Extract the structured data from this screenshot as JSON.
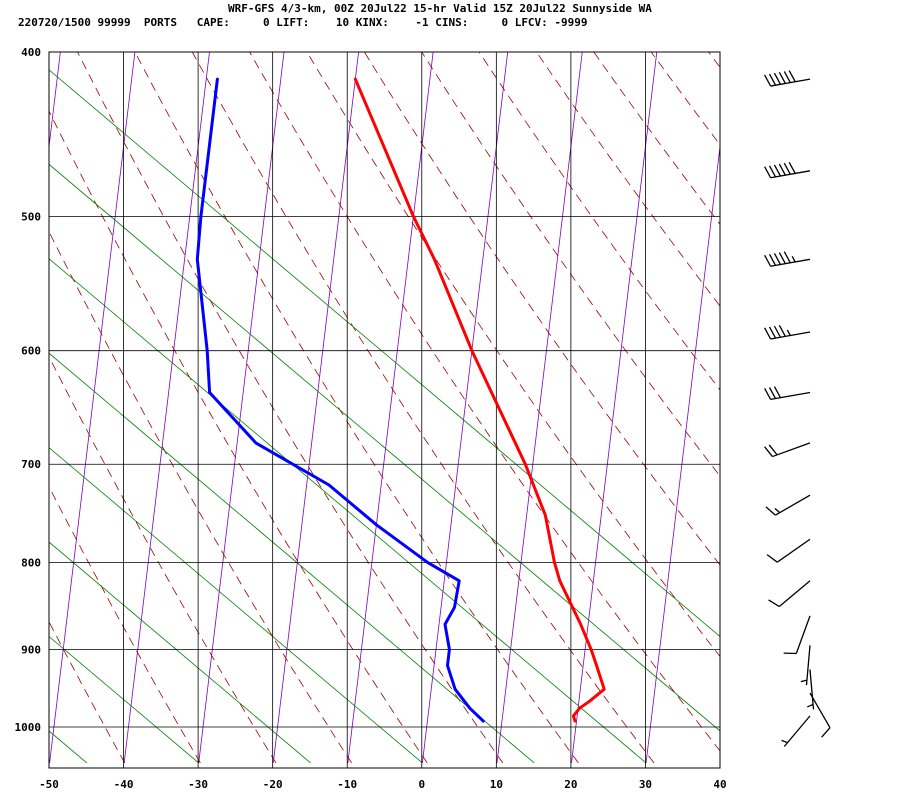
{
  "header": {
    "title": "WRF-GFS 4/3-km, 00Z 20Jul22 15-hr Valid 15Z 20Jul22 Sunnyside WA",
    "stats": "220720/1500 99999  PORTS   CAPE:     0 LIFT:    10 KINX:    -1 CINS:     0 LFCV: -9999"
  },
  "colors": {
    "temperature": "#ff0000",
    "dewpoint": "#0000ff",
    "isotherm_skew": "#8000c0",
    "dry_adiabat": "#a00000",
    "mixing_ratio": "#008000",
    "grid": "#000000"
  },
  "chart_data": {
    "type": "line",
    "title": "",
    "xlabel": "",
    "ylabel": "",
    "x_axis": {
      "ticks": [
        -50,
        -40,
        -30,
        -20,
        -10,
        0,
        10,
        20,
        30,
        40
      ],
      "range": [
        -50,
        40
      ]
    },
    "y_axis": {
      "ticks": [
        400,
        500,
        600,
        700,
        800,
        900,
        1000
      ],
      "range": [
        400,
        1050
      ],
      "scale": "log-pressure"
    },
    "grid": true,
    "series": [
      {
        "color": "#ff0000",
        "points": [
          {
            "p": 415,
            "x": -20
          },
          {
            "p": 500,
            "x": -10
          },
          {
            "p": 530,
            "x": -6.5
          },
          {
            "p": 600,
            "x": 0
          },
          {
            "p": 700,
            "x": 9
          },
          {
            "p": 750,
            "x": 12.5
          },
          {
            "p": 800,
            "x": 14.5
          },
          {
            "p": 820,
            "x": 15.5
          },
          {
            "p": 870,
            "x": 19
          },
          {
            "p": 900,
            "x": 20.8
          },
          {
            "p": 920,
            "x": 21.8
          },
          {
            "p": 950,
            "x": 23.2
          },
          {
            "p": 965,
            "x": 21.5
          },
          {
            "p": 975,
            "x": 20.2
          },
          {
            "p": 985,
            "x": 19.5
          },
          {
            "p": 992,
            "x": 19.8
          }
        ]
      },
      {
        "color": "#0000ff",
        "points": [
          {
            "p": 415,
            "x": -38.5
          },
          {
            "p": 500,
            "x": -38.5
          },
          {
            "p": 530,
            "x": -38.3
          },
          {
            "p": 600,
            "x": -35.5
          },
          {
            "p": 635,
            "x": -34.5
          },
          {
            "p": 680,
            "x": -27.5
          },
          {
            "p": 720,
            "x": -17
          },
          {
            "p": 760,
            "x": -10
          },
          {
            "p": 800,
            "x": -2.5
          },
          {
            "p": 820,
            "x": 2
          },
          {
            "p": 850,
            "x": 1.8
          },
          {
            "p": 870,
            "x": 0.8
          },
          {
            "p": 900,
            "x": 1.8
          },
          {
            "p": 920,
            "x": 1.8
          },
          {
            "p": 950,
            "x": 3.2
          },
          {
            "p": 975,
            "x": 5.5
          },
          {
            "p": 992,
            "x": 7.5
          }
        ]
      }
    ],
    "wind_barbs": [
      {
        "p": 415,
        "speed": 60,
        "dir": 260
      },
      {
        "p": 470,
        "speed": 60,
        "dir": 260
      },
      {
        "p": 530,
        "speed": 55,
        "dir": 260
      },
      {
        "p": 585,
        "speed": 45,
        "dir": 260
      },
      {
        "p": 635,
        "speed": 30,
        "dir": 260
      },
      {
        "p": 680,
        "speed": 20,
        "dir": 250
      },
      {
        "p": 730,
        "speed": 15,
        "dir": 240
      },
      {
        "p": 775,
        "speed": 10,
        "dir": 235
      },
      {
        "p": 820,
        "speed": 10,
        "dir": 230
      },
      {
        "p": 860,
        "speed": 10,
        "dir": 200
      },
      {
        "p": 895,
        "speed": 5,
        "dir": 185
      },
      {
        "p": 925,
        "speed": 5,
        "dir": 175
      },
      {
        "p": 955,
        "speed": 10,
        "dir": 150
      },
      {
        "p": 985,
        "speed": 5,
        "dir": 220
      }
    ]
  }
}
